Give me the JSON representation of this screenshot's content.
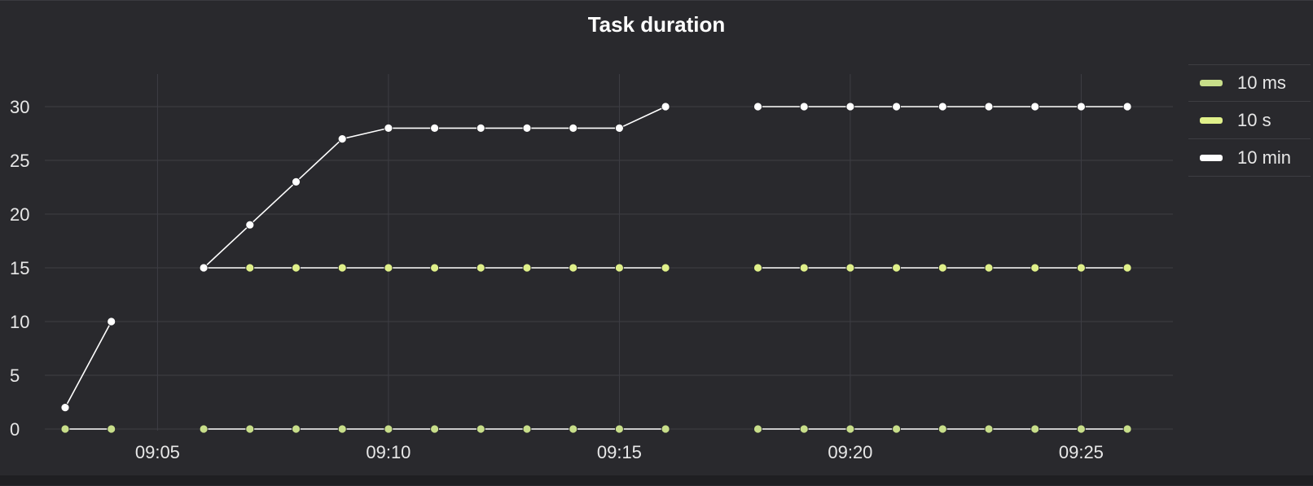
{
  "chart_data": {
    "type": "line",
    "title": "Task duration",
    "xlabel": "",
    "ylabel": "",
    "x": [
      "09:03",
      "09:04",
      "09:05",
      "09:06",
      "09:07",
      "09:08",
      "09:09",
      "09:10",
      "09:11",
      "09:12",
      "09:13",
      "09:14",
      "09:15",
      "09:16",
      "09:17",
      "09:18",
      "09:19",
      "09:20",
      "09:21",
      "09:22",
      "09:23",
      "09:24",
      "09:25",
      "09:26"
    ],
    "x_ticks": [
      "09:05",
      "09:10",
      "09:15",
      "09:20",
      "09:25"
    ],
    "y_ticks": [
      0,
      5,
      10,
      15,
      20,
      25,
      30
    ],
    "ylim": [
      0,
      32
    ],
    "grid": true,
    "legend_position": "right",
    "series": [
      {
        "name": "10 ms",
        "color": "#c8de8a",
        "values": [
          0,
          0,
          null,
          0,
          0,
          0,
          0,
          0,
          0,
          0,
          0,
          0,
          0,
          0,
          null,
          0,
          0,
          0,
          0,
          0,
          0,
          0,
          0,
          0
        ]
      },
      {
        "name": "10 s",
        "color": "#e0f08a",
        "values": [
          null,
          null,
          null,
          15,
          15,
          15,
          15,
          15,
          15,
          15,
          15,
          15,
          15,
          15,
          null,
          15,
          15,
          15,
          15,
          15,
          15,
          15,
          15,
          15
        ]
      },
      {
        "name": "10 min",
        "color": "#ffffff",
        "values": [
          2,
          10,
          null,
          15,
          19,
          23,
          27,
          28,
          28,
          28,
          28,
          28,
          28,
          30,
          null,
          30,
          30,
          30,
          30,
          30,
          30,
          30,
          30,
          30
        ]
      }
    ]
  }
}
